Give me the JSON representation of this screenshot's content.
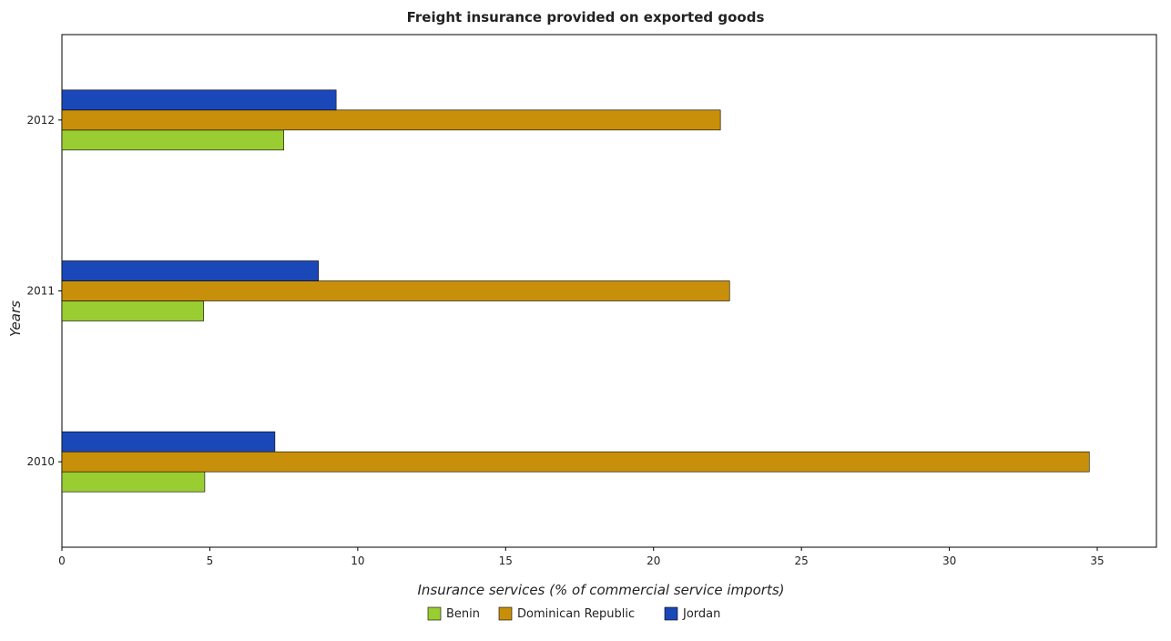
{
  "chart_data": {
    "type": "bar",
    "orientation": "horizontal",
    "title": "Freight insurance provided on exported goods",
    "xlabel": "Insurance services (% of commercial service imports)",
    "ylabel": "Years",
    "categories": [
      "2010",
      "2011",
      "2012"
    ],
    "series": [
      {
        "name": "Benin",
        "color": "#9acd32",
        "values": [
          4.83,
          4.79,
          7.5
        ]
      },
      {
        "name": "Dominican Republic",
        "color": "#c8900a",
        "values": [
          34.73,
          22.57,
          22.26
        ]
      },
      {
        "name": "Jordan",
        "color": "#1b48b8",
        "values": [
          7.2,
          8.67,
          9.27
        ]
      }
    ],
    "xlim": [
      0,
      37
    ],
    "xticks": [
      0,
      5,
      10,
      15,
      20,
      25,
      30,
      35
    ],
    "grid": false,
    "legend_position": "bottom-center"
  }
}
